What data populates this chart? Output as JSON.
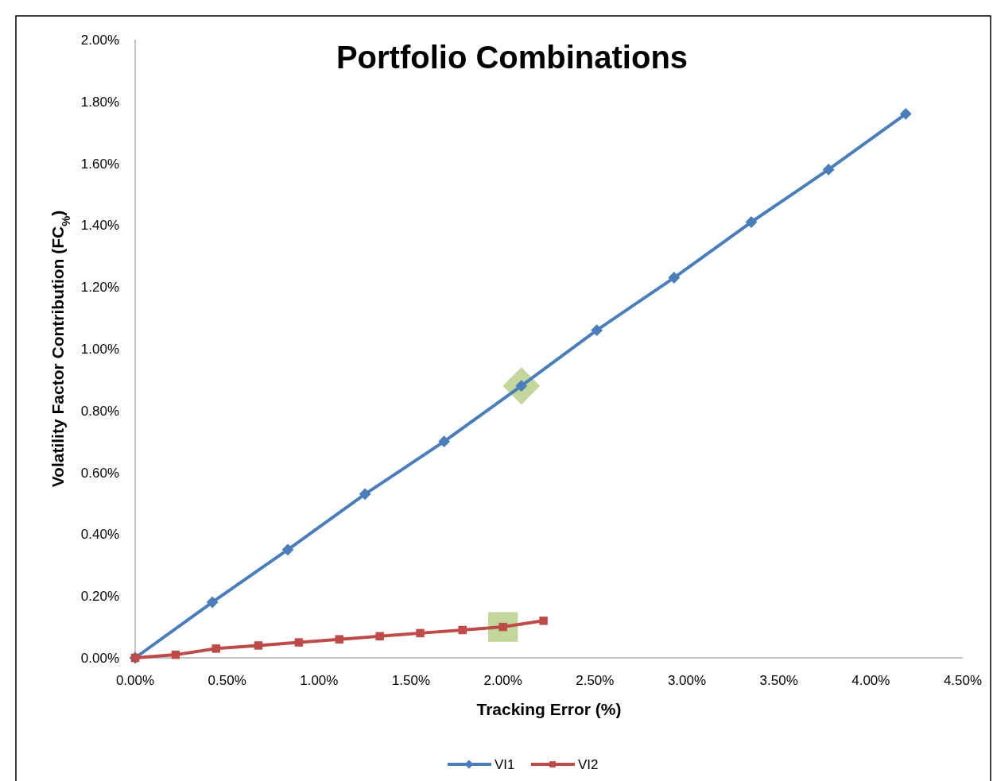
{
  "chart_data": {
    "type": "line",
    "title": "Portfolio Combinations",
    "xlabel": "Tracking Error (%)",
    "ylabel": "Volatility Factor Contribution (FC$_{%}$)",
    "xlim": [
      0,
      4.5
    ],
    "xticks": [
      {
        "value": 0,
        "label": "0.00%"
      },
      {
        "value": 0.5,
        "label": "0.50%"
      },
      {
        "value": 1,
        "label": "1.00%"
      },
      {
        "value": 1.5,
        "label": "1.50%"
      },
      {
        "value": 2,
        "label": "2.00%"
      },
      {
        "value": 2.5,
        "label": "2.50%"
      },
      {
        "value": 3,
        "label": "3.00%"
      },
      {
        "value": 3.5,
        "label": "3.50%"
      },
      {
        "value": 4,
        "label": "4.00%"
      },
      {
        "value": 4.5,
        "label": "4.50%"
      }
    ],
    "ylim": [
      0,
      2
    ],
    "yticks": [
      {
        "value": 0,
        "label": "0.00%"
      },
      {
        "value": 0.2,
        "label": "0.20%"
      },
      {
        "value": 0.4,
        "label": "0.40%"
      },
      {
        "value": 0.6,
        "label": "0.60%"
      },
      {
        "value": 0.8,
        "label": "0.80%"
      },
      {
        "value": 1,
        "label": "1.00%"
      },
      {
        "value": 1.2,
        "label": "1.20%"
      },
      {
        "value": 1.4,
        "label": "1.40%"
      },
      {
        "value": 1.6,
        "label": "1.60%"
      },
      {
        "value": 1.8,
        "label": "1.80%"
      },
      {
        "value": 2,
        "label": "2.00%"
      }
    ],
    "grid": false,
    "legend": "bottom",
    "line_style": "solid",
    "series": [
      {
        "name": "VI1",
        "color": "#4a7ebb",
        "marker": "diamond",
        "x": [
          0,
          0.42,
          0.83,
          1.25,
          1.68,
          2.1,
          2.51,
          2.93,
          3.35,
          3.77,
          4.19
        ],
        "values": [
          0,
          0.18,
          0.35,
          0.53,
          0.7,
          0.88,
          1.06,
          1.23,
          1.41,
          1.58,
          1.76
        ]
      },
      {
        "name": "VI2",
        "color": "#be4b48",
        "marker": "square",
        "x": [
          0,
          0.22,
          0.44,
          0.67,
          0.89,
          1.11,
          1.33,
          1.55,
          1.78,
          2,
          2.22
        ],
        "values": [
          0,
          0.01,
          0.03,
          0.04,
          0.05,
          0.06,
          0.07,
          0.08,
          0.09,
          0.1,
          0.12
        ]
      },
      {
        "type": "scatter",
        "color": "#c3d69b",
        "marker": "diamond",
        "x": [
          2.1
        ],
        "values": [
          0.88
        ]
      },
      {
        "type": "scatter",
        "color": "#c3d69b",
        "marker": "square",
        "x": [
          2
        ],
        "values": [
          0.1
        ]
      }
    ]
  }
}
